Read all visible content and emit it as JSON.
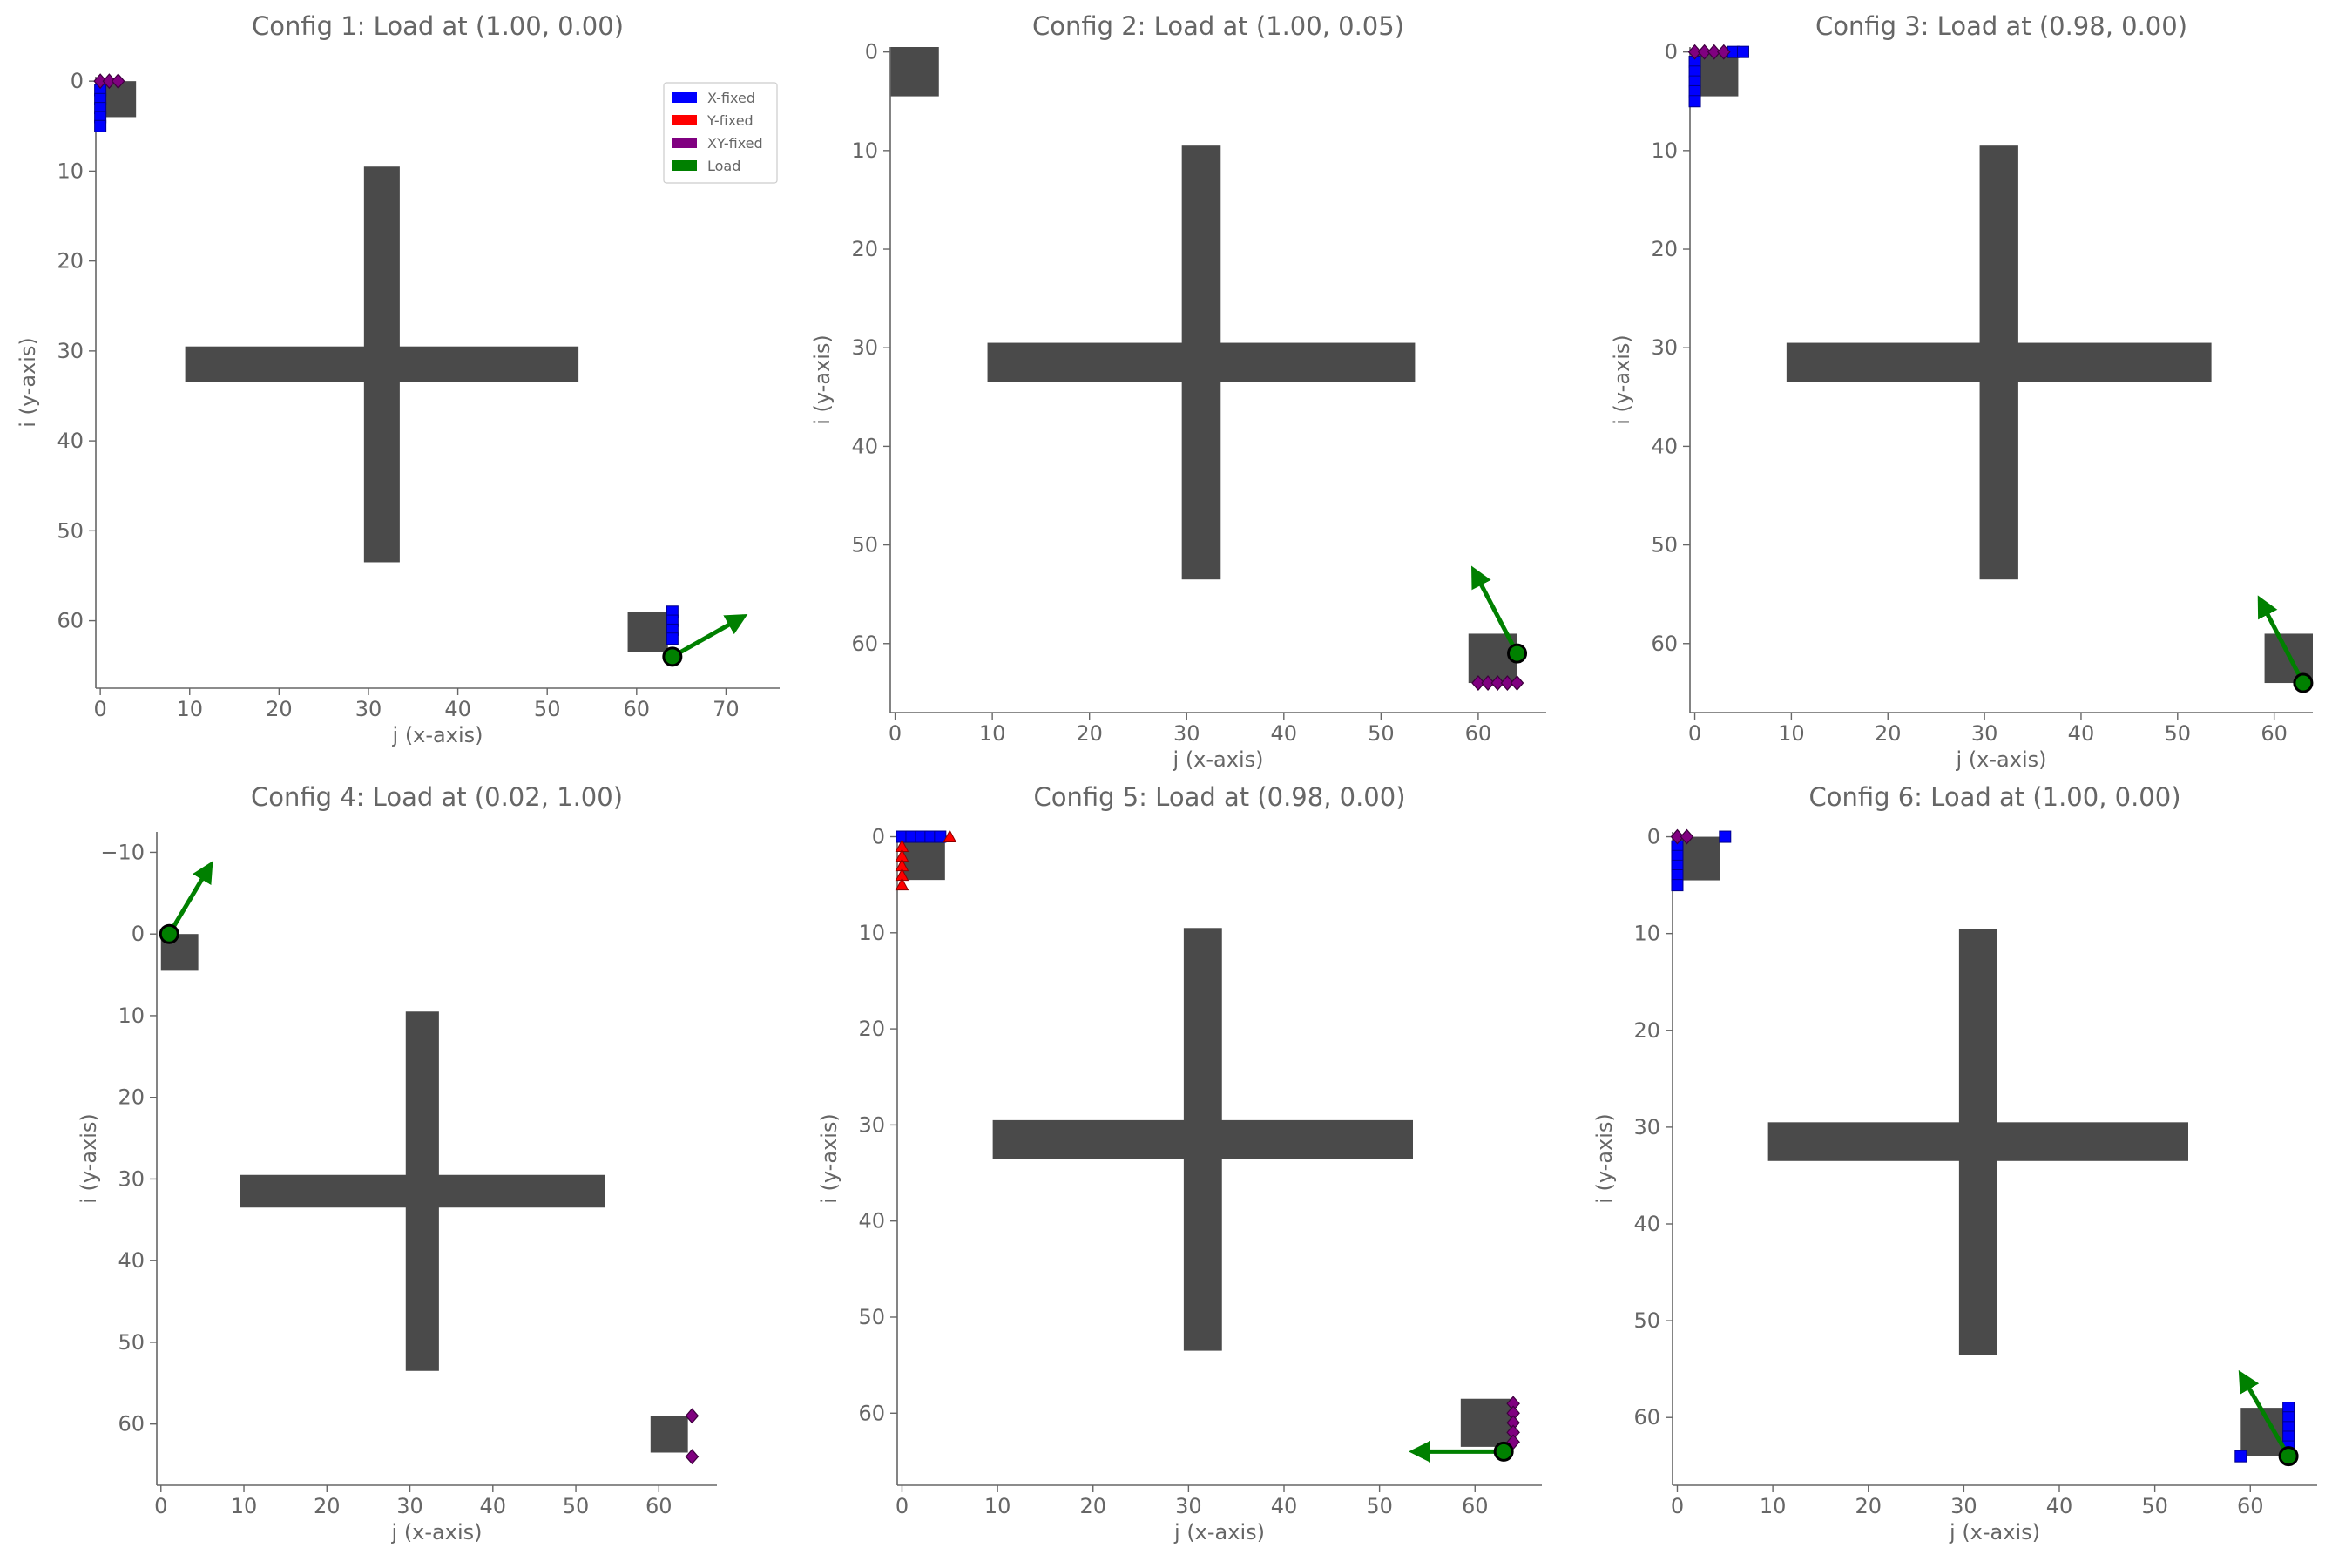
{
  "colors": {
    "solid": "#4a4a4a",
    "x_fixed": "#0000ff",
    "y_fixed": "#ff0000",
    "xy_fixed": "#800080",
    "load": "#008000",
    "axis": "#666666"
  },
  "legend": [
    "X-fixed",
    "Y-fixed",
    "XY-fixed",
    "Load"
  ],
  "chart_data": [
    {
      "type": "scatter",
      "title": "Config 1: Load at (1.00, 0.00)",
      "xlabel": "j (x-axis)",
      "ylabel": "i (y-axis)",
      "xlim": [
        -0.5,
        76
      ],
      "ylim": [
        67.5,
        -0.5
      ],
      "y_inverted": true,
      "xticks": [
        0,
        10,
        20,
        30,
        40,
        50,
        60,
        70
      ],
      "yticks": [
        0,
        10,
        20,
        30,
        40,
        50,
        60
      ],
      "legend_position": "top-right",
      "blocks": [
        [
          0,
          4,
          0,
          4
        ],
        [
          9.5,
          53.5,
          29.5,
          33.5
        ],
        [
          29.5,
          33.5,
          9.5,
          53.5
        ],
        [
          59,
          63.5,
          59,
          63.5
        ]
      ],
      "x_fixed": [
        [
          0,
          1
        ],
        [
          0,
          2
        ],
        [
          0,
          3
        ],
        [
          0,
          4
        ],
        [
          0,
          5
        ],
        [
          64,
          59
        ],
        [
          64,
          60
        ],
        [
          64,
          61
        ],
        [
          64,
          62
        ]
      ],
      "y_fixed": [],
      "xy_fixed": [
        [
          0,
          0
        ],
        [
          1,
          0
        ],
        [
          2,
          0
        ]
      ],
      "load_point": [
        64,
        64
      ],
      "load_arrow_to": [
        72,
        59.5
      ]
    },
    {
      "type": "scatter",
      "title": "Config 2: Load at (1.00, 0.05)",
      "xlabel": "j (x-axis)",
      "ylabel": "i (y-axis)",
      "xlim": [
        -0.5,
        67
      ],
      "ylim": [
        67,
        -0.5
      ],
      "y_inverted": true,
      "xticks": [
        0,
        10,
        20,
        30,
        40,
        50,
        60
      ],
      "yticks": [
        0,
        10,
        20,
        30,
        40,
        50,
        60
      ],
      "blocks": [
        [
          -0.5,
          4.5,
          -0.5,
          4.5
        ],
        [
          9.5,
          53.5,
          29.5,
          33.5
        ],
        [
          29.5,
          33.5,
          9.5,
          53.5
        ],
        [
          59,
          64,
          59,
          64
        ]
      ],
      "x_fixed": [],
      "y_fixed": [],
      "xy_fixed": [
        [
          60,
          64
        ],
        [
          61,
          64
        ],
        [
          62,
          64
        ],
        [
          63,
          64
        ],
        [
          64,
          64
        ]
      ],
      "load_point": [
        64,
        61
      ],
      "load_arrow_to": [
        59.5,
        52.5
      ]
    },
    {
      "type": "scatter",
      "title": "Config 3: Load at (0.98, 0.00)",
      "xlabel": "j (x-axis)",
      "ylabel": "i (y-axis)",
      "xlim": [
        -0.5,
        64
      ],
      "ylim": [
        67,
        -0.5
      ],
      "y_inverted": true,
      "xticks": [
        0,
        10,
        20,
        30,
        40,
        50,
        60
      ],
      "yticks": [
        0,
        10,
        20,
        30,
        40,
        50,
        60
      ],
      "blocks": [
        [
          0,
          4.5,
          0,
          4.5
        ],
        [
          9.5,
          53.5,
          29.5,
          33.5
        ],
        [
          29.5,
          33.5,
          9.5,
          53.5
        ],
        [
          59,
          64,
          59,
          64
        ]
      ],
      "x_fixed": [
        [
          0,
          1
        ],
        [
          0,
          2
        ],
        [
          0,
          3
        ],
        [
          0,
          4
        ],
        [
          0,
          5
        ],
        [
          4,
          0
        ],
        [
          5,
          0
        ]
      ],
      "y_fixed": [],
      "xy_fixed": [
        [
          0,
          0
        ],
        [
          1,
          0
        ],
        [
          2,
          0
        ],
        [
          3,
          0
        ]
      ],
      "load_point": [
        63,
        64
      ],
      "load_arrow_to": [
        58.5,
        55.5
      ]
    },
    {
      "type": "scatter",
      "title": "Config 4: Load at (0.02, 1.00)",
      "xlabel": "j (x-axis)",
      "ylabel": "i (y-axis)",
      "xlim": [
        -0.5,
        67
      ],
      "ylim": [
        67.5,
        -12.5
      ],
      "y_inverted": true,
      "xticks": [
        0,
        10,
        20,
        30,
        40,
        50,
        60
      ],
      "yticks": [
        -10,
        0,
        10,
        20,
        30,
        40,
        50,
        60
      ],
      "ytick_labels": [
        "−10",
        "0",
        "10",
        "20",
        "30",
        "40",
        "50",
        "60"
      ],
      "blocks": [
        [
          0,
          4.5,
          0,
          4.5
        ],
        [
          9.5,
          53.5,
          29.5,
          33.5
        ],
        [
          29.5,
          33.5,
          9.5,
          53.5
        ],
        [
          59,
          63.5,
          59,
          63.5
        ]
      ],
      "x_fixed": [],
      "y_fixed": [],
      "xy_fixed": [
        [
          64,
          59
        ],
        [
          64,
          64
        ]
      ],
      "load_point": [
        1,
        0
      ],
      "load_arrow_to": [
        6,
        -8.5
      ]
    },
    {
      "type": "scatter",
      "title": "Config 5: Load at (0.98, 0.00)",
      "xlabel": "j (x-axis)",
      "ylabel": "i (y-axis)",
      "xlim": [
        -0.5,
        67
      ],
      "ylim": [
        67.5,
        -0.5
      ],
      "y_inverted": true,
      "xticks": [
        0,
        10,
        20,
        30,
        40,
        50,
        60
      ],
      "yticks": [
        0,
        10,
        20,
        30,
        40,
        50,
        60
      ],
      "blocks": [
        [
          0,
          4.5,
          0,
          4.5
        ],
        [
          9.5,
          53.5,
          29.5,
          33.5
        ],
        [
          29.5,
          33.5,
          9.5,
          53.5
        ],
        [
          58.5,
          64,
          58.5,
          63.5
        ]
      ],
      "x_fixed": [
        [
          0,
          0
        ],
        [
          1,
          0
        ],
        [
          2,
          0
        ],
        [
          3,
          0
        ],
        [
          4,
          0
        ]
      ],
      "y_fixed": [
        [
          0,
          1
        ],
        [
          0,
          2
        ],
        [
          0,
          3
        ],
        [
          0,
          4
        ],
        [
          0,
          5
        ],
        [
          5,
          0
        ]
      ],
      "xy_fixed": [
        [
          64,
          59
        ],
        [
          64,
          60
        ],
        [
          64,
          61
        ],
        [
          64,
          62
        ],
        [
          64,
          63
        ]
      ],
      "load_point": [
        63,
        64
      ],
      "load_arrow_to": [
        53.5,
        64
      ]
    },
    {
      "type": "scatter",
      "title": "Config 6: Load at (1.00, 0.00)",
      "xlabel": "j (x-axis)",
      "ylabel": "i (y-axis)",
      "xlim": [
        -0.5,
        67
      ],
      "ylim": [
        67,
        -0.5
      ],
      "y_inverted": true,
      "xticks": [
        0,
        10,
        20,
        30,
        40,
        50,
        60
      ],
      "yticks": [
        0,
        10,
        20,
        30,
        40,
        50,
        60
      ],
      "blocks": [
        [
          0,
          4.5,
          0,
          4.5
        ],
        [
          9.5,
          53.5,
          29.5,
          33.5
        ],
        [
          29.5,
          33.5,
          9.5,
          53.5
        ],
        [
          59,
          64,
          59,
          64
        ]
      ],
      "x_fixed": [
        [
          0,
          1
        ],
        [
          0,
          2
        ],
        [
          0,
          3
        ],
        [
          0,
          4
        ],
        [
          0,
          5
        ],
        [
          5,
          0
        ],
        [
          64,
          59
        ],
        [
          64,
          60
        ],
        [
          64,
          61
        ],
        [
          64,
          62
        ],
        [
          64,
          63
        ],
        [
          59,
          64
        ]
      ],
      "y_fixed": [],
      "xy_fixed": [
        [
          0,
          0
        ],
        [
          1,
          0
        ]
      ],
      "load_point": [
        64,
        64
      ],
      "load_arrow_to": [
        59,
        55.5
      ]
    }
  ]
}
